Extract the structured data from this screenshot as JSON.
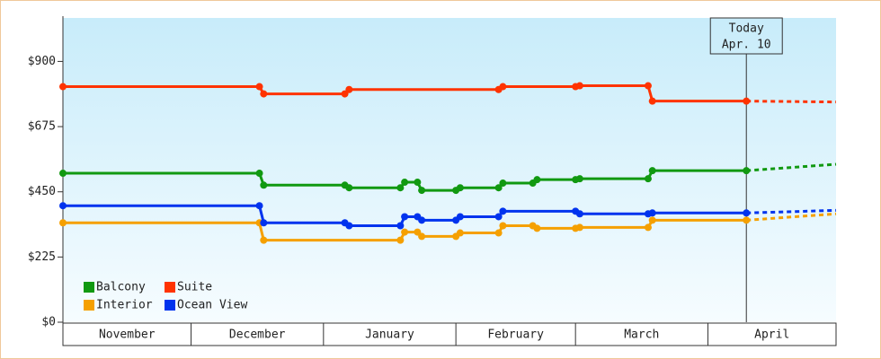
{
  "chart_data": {
    "type": "line",
    "categories": [
      "November",
      "December",
      "January",
      "February",
      "March",
      "April"
    ],
    "xlim": [
      0,
      181
    ],
    "xticks": [
      0,
      30,
      61,
      92,
      120,
      151,
      181
    ],
    "ylim": [
      0,
      1050
    ],
    "yticks": [
      {
        "value": 0,
        "label": "$0"
      },
      {
        "value": 225,
        "label": "$225"
      },
      {
        "value": 450,
        "label": "$450"
      },
      {
        "value": 675,
        "label": "$675"
      },
      {
        "value": 900,
        "label": "$900"
      }
    ],
    "marker": {
      "x": 160,
      "lines": [
        "Today",
        "Apr. 10"
      ]
    },
    "legend": "lower left",
    "series": [
      {
        "name": "Balcony",
        "color": "#119911",
        "x": [
          0,
          46,
          47,
          66,
          67,
          79,
          80,
          83,
          84,
          92,
          93,
          102,
          103,
          110,
          111,
          120,
          121,
          137,
          138,
          160
        ],
        "values": [
          514,
          514,
          473,
          473,
          464,
          464,
          483,
          483,
          455,
          455,
          464,
          464,
          480,
          480,
          492,
          492,
          495,
          495,
          523,
          523
        ],
        "forecast_x": [
          160,
          181
        ],
        "forecast_values": [
          523,
          545
        ]
      },
      {
        "name": "Suite",
        "color": "#ff3300",
        "x": [
          0,
          46,
          47,
          66,
          67,
          102,
          103,
          120,
          121,
          137,
          138,
          160
        ],
        "values": [
          813,
          813,
          788,
          788,
          803,
          803,
          813,
          813,
          816,
          816,
          763,
          763
        ],
        "forecast_x": [
          160,
          181
        ],
        "forecast_values": [
          763,
          760
        ]
      },
      {
        "name": "Interior",
        "color": "#f5a000",
        "x": [
          0,
          46,
          47,
          79,
          80,
          83,
          84,
          92,
          93,
          102,
          103,
          110,
          111,
          120,
          121,
          137,
          138,
          160
        ],
        "values": [
          343,
          343,
          283,
          283,
          311,
          311,
          296,
          296,
          308,
          308,
          333,
          333,
          324,
          324,
          327,
          327,
          352,
          352
        ],
        "forecast_x": [
          160,
          181
        ],
        "forecast_values": [
          352,
          374
        ]
      },
      {
        "name": "Ocean View",
        "color": "#0033ee",
        "x": [
          0,
          46,
          47,
          66,
          67,
          79,
          80,
          83,
          84,
          92,
          93,
          102,
          103,
          120,
          121,
          137,
          138,
          160
        ],
        "values": [
          402,
          402,
          343,
          343,
          333,
          333,
          364,
          364,
          352,
          352,
          364,
          364,
          383,
          383,
          374,
          374,
          377,
          377
        ],
        "forecast_x": [
          160,
          181
        ],
        "forecast_values": [
          377,
          386
        ]
      }
    ]
  }
}
